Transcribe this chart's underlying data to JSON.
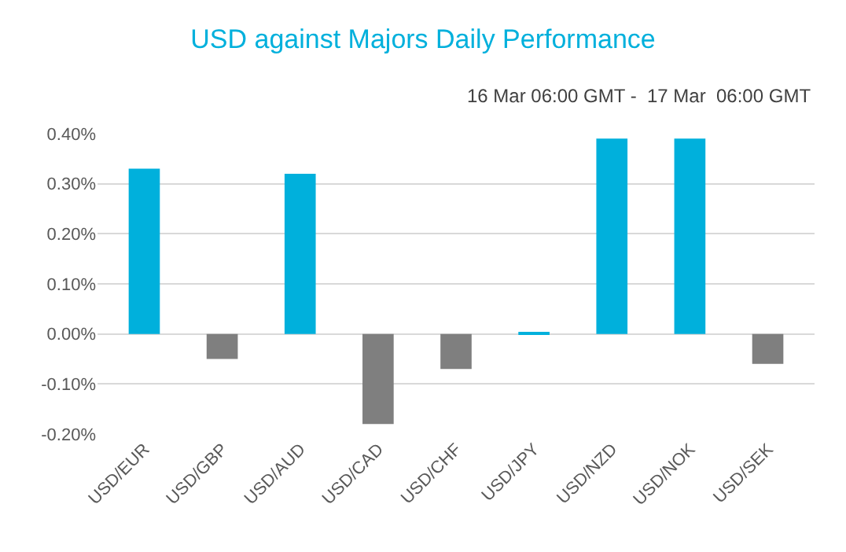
{
  "chart_data": {
    "type": "bar",
    "title": "USD against Majors Daily Performance",
    "subtitle": "16 Mar 06:00 GMT -  17 Mar  06:00 GMT",
    "categories": [
      "USD/EUR",
      "USD/GBP",
      "USD/AUD",
      "USD/CAD",
      "USD/CHF",
      "USD/JPY",
      "USD/NZD",
      "USD/NOK",
      "USD/SEK"
    ],
    "values": [
      0.33,
      -0.05,
      0.32,
      -0.18,
      -0.07,
      0.003,
      0.39,
      0.39,
      -0.06
    ],
    "colors": [
      "#00b0dc",
      "#7f7f7f",
      "#00b0dc",
      "#7f7f7f",
      "#7f7f7f",
      "#00b0dc",
      "#00b0dc",
      "#00b0dc",
      "#7f7f7f"
    ],
    "ylim": [
      -0.2,
      0.4
    ],
    "yticks": [
      {
        "value": -0.2,
        "label": "-0.20%"
      },
      {
        "value": -0.1,
        "label": "-0.10%"
      },
      {
        "value": 0,
        "label": "0.00%"
      },
      {
        "value": 0.1,
        "label": "0.10%"
      },
      {
        "value": 0.2,
        "label": "0.20%"
      },
      {
        "value": 0.3,
        "label": "0.30%"
      },
      {
        "value": 0.4,
        "label": "0.40%"
      }
    ],
    "grid": "y"
  }
}
